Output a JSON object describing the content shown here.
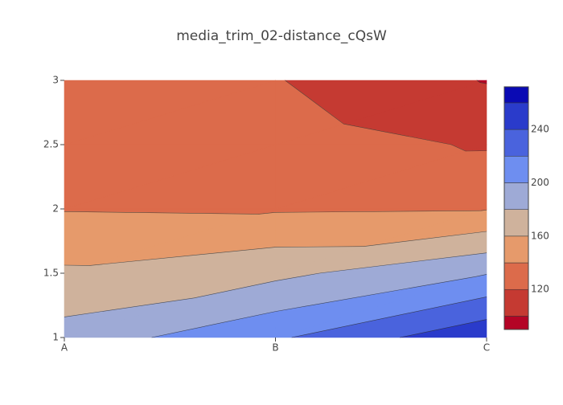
{
  "chart_data": {
    "type": "contour",
    "title": "media_trim_02-distance_cQsW",
    "x": [
      "A",
      "B",
      "C"
    ],
    "y": [
      1,
      1.5,
      2,
      2.5,
      3
    ],
    "z": [
      [
        188,
        217,
        256
      ],
      [
        163,
        175,
        199
      ],
      [
        139,
        138,
        139
      ],
      [
        133,
        130,
        118
      ],
      [
        131,
        121,
        99
      ]
    ],
    "ylim": [
      1,
      3
    ],
    "yticks": [
      1,
      1.5,
      2,
      2.5,
      3
    ],
    "contours": {
      "start": 100,
      "end": 260,
      "size": 20
    },
    "zlim": [
      90,
      272
    ],
    "colorbar_ticks": [
      120,
      160,
      200,
      240
    ],
    "colorscale": [
      "#b40426",
      "#c53a32",
      "#dc6b4b",
      "#e69a6b",
      "#cfb29c",
      "#9eaad6",
      "#6e8ef0",
      "#4a63dd",
      "#2a3bcb",
      "#0a0ab4"
    ]
  }
}
